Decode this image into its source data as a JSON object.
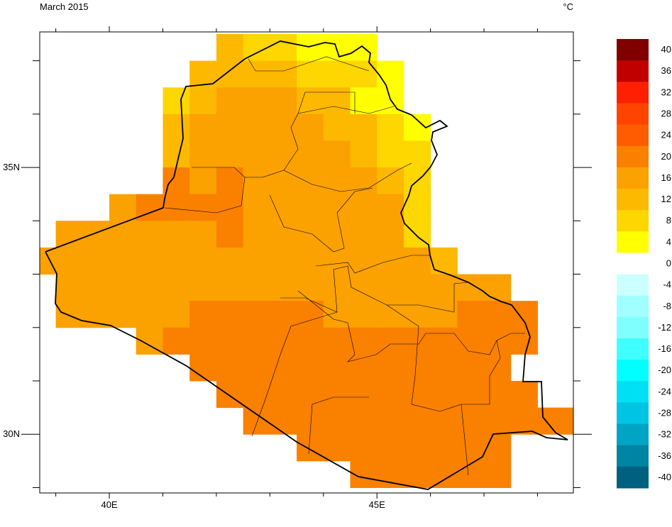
{
  "title": "March 2015",
  "units": "°C",
  "map": {
    "xlim": [
      38.7,
      48.67
    ],
    "ylim": [
      28.9,
      37.54
    ],
    "xticks": [
      {
        "value": 40,
        "label": "40E"
      },
      {
        "value": 45,
        "label": "45E"
      }
    ],
    "yticks": [
      {
        "value": 35,
        "label": "35N"
      },
      {
        "value": 30,
        "label": "30N"
      }
    ],
    "xminor": [
      39,
      41,
      42,
      43,
      44,
      46,
      47,
      48
    ],
    "yminor": [
      37,
      36,
      34,
      33,
      32,
      31,
      29
    ],
    "cell_size": 0.5,
    "rows": [
      {
        "lat": 37.5,
        "lon": 42,
        "values": [
          12,
          8,
          8,
          4,
          4,
          4
        ]
      },
      {
        "lat": 37,
        "lon": 41.5,
        "values": [
          12,
          12,
          12,
          12,
          8,
          8,
          8,
          4
        ]
      },
      {
        "lat": 36.5,
        "lon": 41,
        "values": [
          8,
          12,
          16,
          16,
          16,
          12,
          12,
          4,
          4
        ]
      },
      {
        "lat": 36,
        "lon": 41,
        "values": [
          12,
          16,
          16,
          16,
          16,
          16,
          12,
          12,
          8,
          4
        ]
      },
      {
        "lat": 35.5,
        "lon": 41,
        "values": [
          12,
          16,
          16,
          16,
          16,
          16,
          16,
          12,
          8,
          8
        ]
      },
      {
        "lat": 35,
        "lon": 41,
        "values": [
          20,
          16,
          20,
          16,
          16,
          16,
          16,
          16,
          12,
          8
        ]
      },
      {
        "lat": 34.5,
        "lon": 40,
        "values": [
          16,
          20,
          20,
          20,
          20,
          16,
          16,
          16,
          16,
          16,
          16,
          8
        ]
      },
      {
        "lat": 34,
        "lon": 39,
        "values": [
          16,
          16,
          16,
          16,
          16,
          16,
          20,
          16,
          16,
          16,
          16,
          16,
          16,
          8
        ]
      },
      {
        "lat": 33.5,
        "lon": 38.5,
        "values": [
          16,
          16,
          16,
          16,
          16,
          16,
          16,
          16,
          16,
          16,
          16,
          16,
          16,
          16,
          16,
          12
        ]
      },
      {
        "lat": 33,
        "lon": 39,
        "values": [
          16,
          16,
          16,
          16,
          16,
          16,
          16,
          16,
          16,
          16,
          16,
          16,
          16,
          16,
          16,
          16,
          16
        ]
      },
      {
        "lat": 32.5,
        "lon": 39,
        "values": [
          16,
          16,
          16,
          16,
          16,
          20,
          20,
          20,
          20,
          20,
          16,
          16,
          16,
          16,
          16,
          20,
          20,
          20
        ]
      },
      {
        "lat": 32,
        "lon": 40.5,
        "values": [
          16,
          20,
          20,
          20,
          20,
          20,
          20,
          20,
          20,
          20,
          20,
          20,
          20,
          20,
          20
        ]
      },
      {
        "lat": 31.5,
        "lon": 41.5,
        "values": [
          20,
          20,
          20,
          20,
          20,
          20,
          20,
          20,
          20,
          20,
          20,
          20
        ]
      },
      {
        "lat": 31,
        "lon": 42,
        "values": [
          20,
          20,
          20,
          20,
          20,
          20,
          20,
          20,
          20,
          20,
          20,
          20
        ]
      },
      {
        "lat": 30.5,
        "lon": 42.5,
        "values": [
          20,
          20,
          20,
          20,
          20,
          20,
          20,
          20,
          20,
          20,
          20,
          20,
          20
        ]
      },
      {
        "lat": 30,
        "lon": 43.5,
        "values": [
          20,
          20,
          20,
          20,
          20,
          20,
          20,
          20
        ]
      },
      {
        "lat": 29.5,
        "lon": 44.5,
        "values": [
          20,
          20,
          20,
          20,
          20,
          20
        ]
      }
    ]
  },
  "colorbar": {
    "levels": [
      40,
      36,
      32,
      28,
      24,
      20,
      16,
      12,
      8,
      4,
      0,
      -4,
      -8,
      -12,
      -16,
      -20,
      -24,
      -28,
      -32,
      -36,
      -40
    ],
    "colors": [
      "#800000",
      "#c00000",
      "#ff2000",
      "#ff4400",
      "#ff5c00",
      "#fa8000",
      "#fba100",
      "#fdb800",
      "#fed600",
      "#ffff00",
      "#ffffff",
      "#ccffff",
      "#a0ffff",
      "#80ffff",
      "#40ffff",
      "#00ffff",
      "#00e0f4",
      "#00c4e4",
      "#00a4c4",
      "#0084a4",
      "#006080"
    ]
  }
}
